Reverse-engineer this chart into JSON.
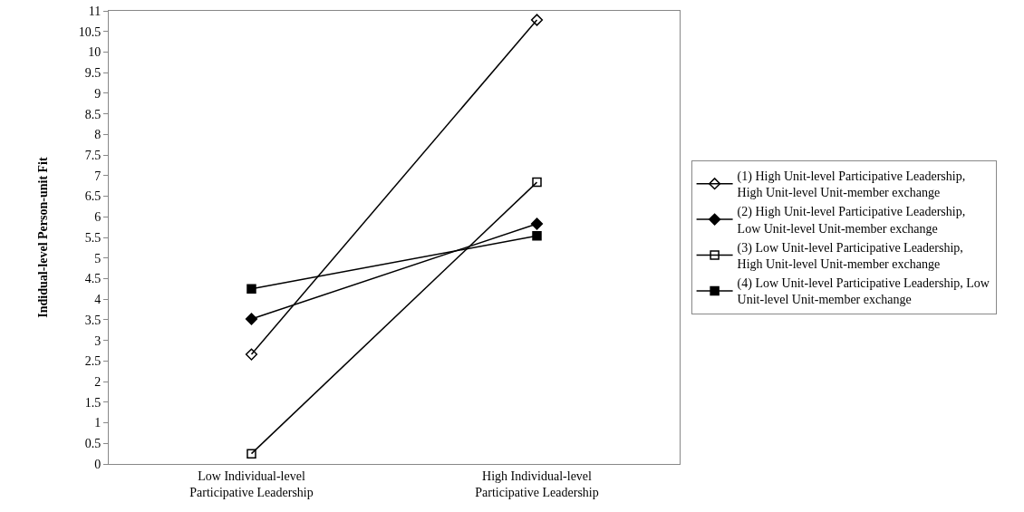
{
  "chart_data": {
    "type": "line",
    "ylabel": "Indidual-level Person-unit Fit",
    "categories": [
      "Low Individual-level Participative Leadership",
      "High Individual-level Participative Leadership"
    ],
    "series": [
      {
        "name": "(1) High Unit-level Participative Leadership, High Unit-level Unit-member exchange",
        "color": "#000000",
        "marker": "diamond-open",
        "values": [
          2.66,
          10.78
        ]
      },
      {
        "name": "(2) High Unit-level Participative Leadership, Low Unit-level Unit-member exchange",
        "color": "#000000",
        "marker": "diamond",
        "values": [
          3.52,
          5.83
        ]
      },
      {
        "name": "(3) Low Unit-level Participative Leadership, High Unit-level Unit-member exchange",
        "color": "#000000",
        "marker": "square-open",
        "values": [
          0.25,
          6.84
        ]
      },
      {
        "name": "(4) Low Unit-level Participative Leadership, Low Unit-level Unit-member exchange",
        "color": "#000000",
        "marker": "square",
        "values": [
          4.25,
          5.54
        ]
      }
    ],
    "ylim": [
      0,
      11
    ],
    "yticks": [
      0,
      0.5,
      1,
      1.5,
      2,
      2.5,
      3,
      3.5,
      4,
      4.5,
      5,
      5.5,
      6,
      6.5,
      7,
      7.5,
      8,
      8.5,
      9,
      9.5,
      10,
      10.5,
      11
    ],
    "grid": false,
    "legend": "right",
    "line_style": "solid"
  }
}
